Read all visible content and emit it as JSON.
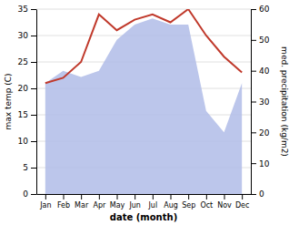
{
  "chart_data": {
    "type": "line",
    "categories": [
      "Jan",
      "Feb",
      "Mar",
      "Apr",
      "May",
      "Jun",
      "Jul",
      "Aug",
      "Sep",
      "Oct",
      "Nov",
      "Dec"
    ],
    "series": [
      {
        "type": "area",
        "axis": "y2",
        "color": "#b0bce8",
        "values": [
          36,
          40,
          38,
          40,
          50,
          55,
          57,
          55,
          55,
          27,
          20,
          36
        ]
      },
      {
        "type": "line",
        "color": "#c0392b",
        "values": [
          21,
          22,
          25,
          34,
          31,
          33,
          34,
          32.5,
          35,
          30,
          26,
          23
        ]
      }
    ],
    "xlabel": "date (month)",
    "ylabel": "max temp (C)",
    "y2label": "med. precipitation (kg/m2)",
    "ylim": [
      0,
      35
    ],
    "yticks": [
      0,
      5,
      10,
      15,
      20,
      25,
      30,
      35
    ],
    "y2lim": [
      0,
      60
    ],
    "y2ticks": [
      0,
      10,
      20,
      30,
      40,
      50,
      60
    ],
    "grid": true
  }
}
